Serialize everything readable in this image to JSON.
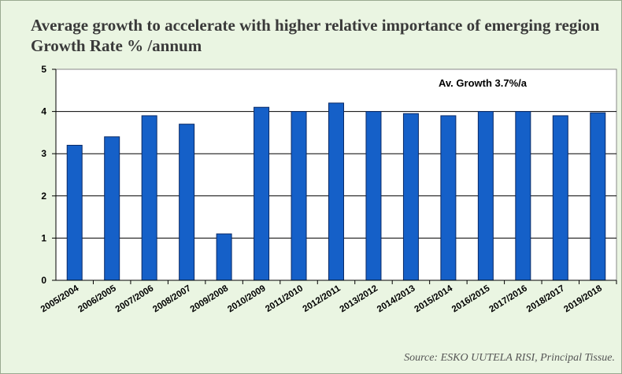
{
  "title": "Average growth to accelerate with higher relative importance of emerging region Growth Rate % /annum",
  "source": "Source: ESKO UUTELA RISI, Principal Tissue.",
  "colors": {
    "bar": "#1560c8",
    "bar_edge": "#0a2a66",
    "background": "#eaf5e2"
  },
  "chart_data": {
    "type": "bar",
    "title": "Average growth to accelerate with higher relative importance of emerging region Growth Rate % /annum",
    "xlabel": "",
    "ylabel": "",
    "ylim": [
      0,
      5
    ],
    "yticks": [
      "0",
      "1",
      "2",
      "3",
      "4",
      "5"
    ],
    "grid": true,
    "annotation": "Av. Growth 3.7%/a",
    "categories": [
      "2005/2004",
      "2006/2005",
      "2007/2006",
      "2008/2007",
      "2009/2008",
      "2010/2009",
      "2011/2010",
      "2012/2011",
      "2013/2012",
      "2014/2013",
      "2015/2014",
      "2016/2015",
      "2017/2016",
      "2018/2017",
      "2019/2018"
    ],
    "values": [
      3.2,
      3.4,
      3.9,
      3.7,
      1.1,
      4.1,
      4.0,
      4.2,
      4.0,
      3.95,
      3.9,
      4.0,
      4.0,
      3.9,
      3.97
    ]
  }
}
